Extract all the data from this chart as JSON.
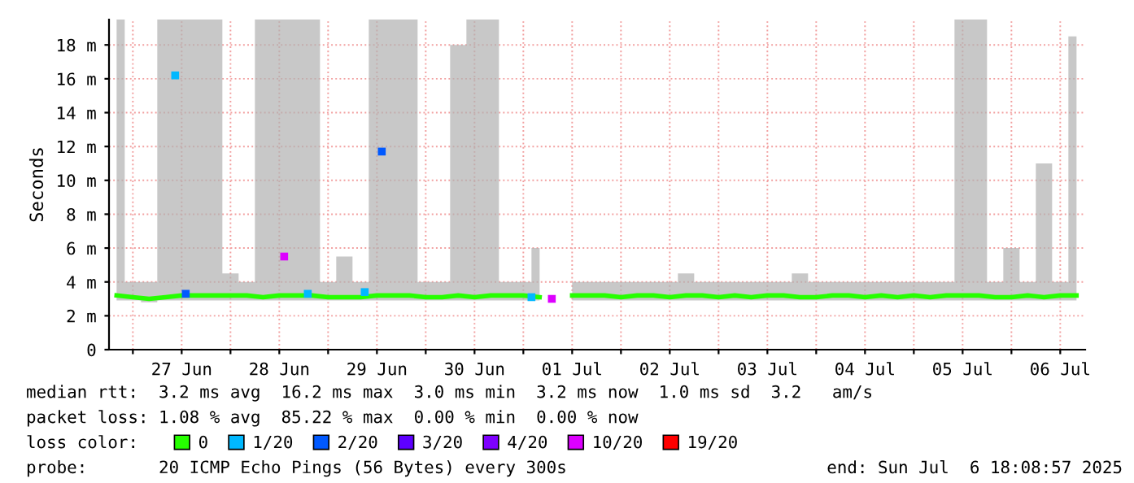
{
  "chart_data": {
    "type": "line",
    "ylabel": "Seconds",
    "legend_title": "loss color:",
    "legend": "bottom",
    "grid": true,
    "line_style": "solid",
    "xlim": [
      "2025-06-26T18:08",
      "2025-07-06T18:08"
    ],
    "xticks": [
      {
        "value": "2025-06-27T00:00",
        "label": null
      },
      {
        "value": "2025-06-27T12:00",
        "label": "27 Jun"
      },
      {
        "value": "2025-06-28T00:00",
        "label": null
      },
      {
        "value": "2025-06-28T12:00",
        "label": "28 Jun"
      },
      {
        "value": "2025-06-29T00:00",
        "label": null
      },
      {
        "value": "2025-06-29T12:00",
        "label": "29 Jun"
      },
      {
        "value": "2025-06-30T00:00",
        "label": null
      },
      {
        "value": "2025-06-30T12:00",
        "label": "30 Jun"
      },
      {
        "value": "2025-07-01T00:00",
        "label": null
      },
      {
        "value": "2025-07-01T12:00",
        "label": "01 Jul"
      },
      {
        "value": "2025-07-02T00:00",
        "label": null
      },
      {
        "value": "2025-07-02T12:00",
        "label": "02 Jul"
      },
      {
        "value": "2025-07-03T00:00",
        "label": null
      },
      {
        "value": "2025-07-03T12:00",
        "label": "03 Jul"
      },
      {
        "value": "2025-07-04T00:00",
        "label": null
      },
      {
        "value": "2025-07-04T12:00",
        "label": "04 Jul"
      },
      {
        "value": "2025-07-05T00:00",
        "label": null
      },
      {
        "value": "2025-07-05T12:00",
        "label": "05 Jul"
      },
      {
        "value": "2025-07-06T00:00",
        "label": null
      },
      {
        "value": "2025-07-06T12:00",
        "label": "06 Jul"
      }
    ],
    "ylim": [
      0,
      19.5
    ],
    "yticks": [
      0,
      {
        "value": 2,
        "label": "2 m"
      },
      {
        "value": 4,
        "label": "4 m"
      },
      {
        "value": 6,
        "label": "6 m"
      },
      {
        "value": 8,
        "label": "8 m"
      },
      {
        "value": 10,
        "label": "10 m"
      },
      {
        "value": 12,
        "label": "12 m"
      },
      {
        "value": 14,
        "label": "14 m"
      },
      {
        "value": 16,
        "label": "16 m"
      },
      {
        "value": 18,
        "label": "18 m"
      }
    ],
    "x": [
      "2025-06-26T20:00",
      "2025-06-27T00:00",
      "2025-06-27T04:00",
      "2025-06-27T08:00",
      "2025-06-27T12:00",
      "2025-06-27T16:00",
      "2025-06-27T20:00",
      "2025-06-28T00:00",
      "2025-06-28T04:00",
      "2025-06-28T08:00",
      "2025-06-28T12:00",
      "2025-06-28T16:00",
      "2025-06-28T20:00",
      "2025-06-29T00:00",
      "2025-06-29T04:00",
      "2025-06-29T08:00",
      "2025-06-29T12:00",
      "2025-06-29T16:00",
      "2025-06-29T20:00",
      "2025-06-30T00:00",
      "2025-06-30T04:00",
      "2025-06-30T08:00",
      "2025-06-30T12:00",
      "2025-06-30T16:00",
      "2025-06-30T20:00",
      "2025-07-01T00:00",
      "2025-07-01T04:00",
      "2025-07-01T08:00",
      "2025-07-01T12:00",
      "2025-07-01T16:00",
      "2025-07-01T20:00",
      "2025-07-02T00:00",
      "2025-07-02T04:00",
      "2025-07-02T08:00",
      "2025-07-02T12:00",
      "2025-07-02T16:00",
      "2025-07-02T20:00",
      "2025-07-03T00:00",
      "2025-07-03T04:00",
      "2025-07-03T08:00",
      "2025-07-03T12:00",
      "2025-07-03T16:00",
      "2025-07-03T20:00",
      "2025-07-04T00:00",
      "2025-07-04T04:00",
      "2025-07-04T08:00",
      "2025-07-04T12:00",
      "2025-07-04T16:00",
      "2025-07-04T20:00",
      "2025-07-05T00:00",
      "2025-07-05T04:00",
      "2025-07-05T08:00",
      "2025-07-05T12:00",
      "2025-07-05T16:00",
      "2025-07-05T20:00",
      "2025-07-06T00:00",
      "2025-07-06T04:00",
      "2025-07-06T08:00",
      "2025-07-06T12:00",
      "2025-07-06T16:00"
    ],
    "series": [
      {
        "name": "0",
        "color": "#26ff00",
        "values": [
          3.2,
          3.1,
          3.0,
          3.1,
          3.2,
          3.2,
          3.2,
          3.2,
          3.2,
          3.1,
          3.2,
          3.2,
          3.2,
          3.1,
          3.1,
          3.1,
          3.2,
          3.2,
          3.2,
          3.1,
          3.1,
          3.2,
          3.1,
          3.2,
          3.2,
          3.2,
          3.1,
          null,
          3.2,
          3.2,
          3.2,
          3.1,
          3.2,
          3.2,
          3.1,
          3.2,
          3.2,
          3.1,
          3.2,
          3.1,
          3.2,
          3.2,
          3.1,
          3.1,
          3.2,
          3.2,
          3.1,
          3.2,
          3.1,
          3.2,
          3.1,
          3.2,
          3.2,
          3.2,
          3.1,
          3.1,
          3.2,
          3.1,
          3.2,
          3.2
        ],
        "lower": [
          2.9,
          2.9,
          2.8,
          2.9,
          2.9,
          2.9,
          2.9,
          2.9,
          2.9,
          2.9,
          2.9,
          2.9,
          2.9,
          2.9,
          2.9,
          2.9,
          2.9,
          2.9,
          2.9,
          2.9,
          2.9,
          2.9,
          2.9,
          2.9,
          2.9,
          2.9,
          2.9,
          null,
          2.9,
          2.9,
          2.9,
          2.9,
          2.9,
          2.9,
          2.9,
          2.9,
          2.9,
          2.9,
          2.9,
          2.9,
          2.9,
          2.9,
          2.9,
          2.9,
          2.9,
          2.9,
          2.9,
          2.9,
          2.9,
          2.9,
          2.9,
          2.9,
          2.9,
          2.9,
          2.9,
          2.9,
          2.9,
          2.9,
          2.9,
          2.9
        ],
        "upper": [
          19.5,
          4,
          4,
          19.5,
          19.5,
          19.5,
          19.5,
          4.5,
          4,
          19.5,
          19.5,
          19.5,
          19.5,
          4,
          5.5,
          4,
          19.5,
          19.5,
          19.5,
          4,
          4,
          18,
          19.5,
          19.5,
          4,
          4,
          6,
          null,
          4,
          4,
          4,
          4,
          4,
          4,
          4,
          4.5,
          4,
          4,
          4,
          4,
          4,
          4,
          4.5,
          4,
          4,
          4,
          4,
          4,
          4,
          4,
          4,
          4,
          19.5,
          19.5,
          4,
          6,
          4,
          11,
          4,
          18.5
        ]
      },
      {
        "name": "1/20",
        "type": "scatter",
        "marker": "square",
        "color": "#00b8ff",
        "x": [
          "2025-06-27T10:24",
          "2025-06-28T19:00",
          "2025-06-29T09:00",
          "2025-07-01T02:00"
        ],
        "values": [
          16.2,
          3.3,
          3.4,
          3.1
        ]
      },
      {
        "name": "2/20",
        "type": "scatter",
        "marker": "square",
        "color": "#0059ff",
        "x": [
          "2025-06-27T13:00",
          "2025-06-29T13:12"
        ],
        "values": [
          3.3,
          11.7
        ]
      },
      {
        "name": "3/20",
        "type": "scatter",
        "color": "#5e00ff",
        "values": [
          null,
          null,
          null,
          null,
          null,
          null,
          null,
          null,
          null,
          null,
          null,
          null,
          null,
          null,
          null,
          null,
          null,
          null,
          null,
          null,
          null,
          null,
          null,
          null,
          null,
          null,
          null,
          null,
          null,
          null,
          null,
          null,
          null,
          null,
          null,
          null,
          null,
          null,
          null,
          null,
          null,
          null,
          null,
          null,
          null,
          null,
          null,
          null,
          null,
          null,
          null,
          null,
          null,
          null,
          null,
          null,
          null,
          null,
          null,
          null
        ]
      },
      {
        "name": "4/20",
        "type": "scatter",
        "color": "#7e00ff",
        "values": [
          null,
          null,
          null,
          null,
          null,
          null,
          null,
          null,
          null,
          null,
          null,
          null,
          null,
          null,
          null,
          null,
          null,
          null,
          null,
          null,
          null,
          null,
          null,
          null,
          null,
          null,
          null,
          null,
          null,
          null,
          null,
          null,
          null,
          null,
          null,
          null,
          null,
          null,
          null,
          null,
          null,
          null,
          null,
          null,
          null,
          null,
          null,
          null,
          null,
          null,
          null,
          null,
          null,
          null,
          null,
          null,
          null,
          null,
          null,
          null
        ]
      },
      {
        "name": "10/20",
        "type": "scatter",
        "marker": "square",
        "color": "#dd00ff",
        "x": [
          "2025-06-28T13:12",
          "2025-07-01T07:00"
        ],
        "values": [
          5.5,
          3.0
        ]
      },
      {
        "name": "19/20",
        "type": "scatter",
        "color": "#ff0000",
        "values": [
          null,
          null,
          null,
          null,
          null,
          null,
          null,
          null,
          null,
          null,
          null,
          null,
          null,
          null,
          null,
          null,
          null,
          null,
          null,
          null,
          null,
          null,
          null,
          null,
          null,
          null,
          null,
          null,
          null,
          null,
          null,
          null,
          null,
          null,
          null,
          null,
          null,
          null,
          null,
          null,
          null,
          null,
          null,
          null,
          null,
          null,
          null,
          null,
          null,
          null,
          null,
          null,
          null,
          null,
          null,
          null,
          null,
          null,
          null,
          null
        ]
      }
    ],
    "annotations": [
      "median rtt:  3.2 ms avg  16.2 ms max  3.0 ms min  3.2 ms now  1.0 ms sd  3.2   am/s",
      "packet loss: 1.08 % avg  85.22 % max  0.00 % min  0.00 % now",
      "probe:       20 ICMP Echo Pings (56 Bytes) every 300s",
      "end: Sun Jul  6 18:08:57 2025"
    ]
  }
}
